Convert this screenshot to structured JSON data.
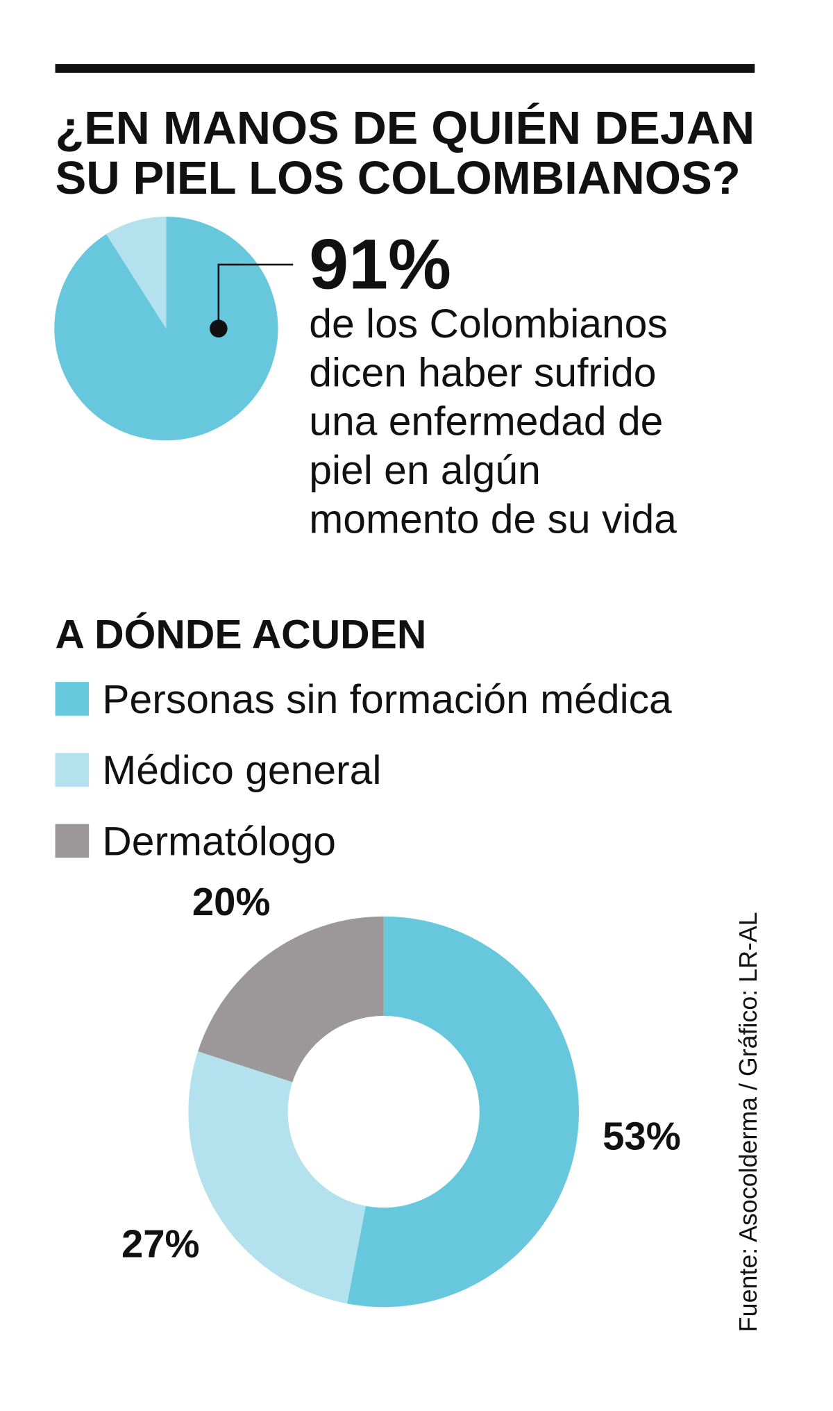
{
  "title_lines": [
    "¿EN MANOS DE QUIÉN DEJAN",
    "SU PIEL LOS COLOMBIANOS?"
  ],
  "source": "Fuente: Asocolderma / Gráfico: LR-AL",
  "chart_data": [
    {
      "type": "pie",
      "values": [
        91,
        9
      ],
      "value_labels": [
        "91%",
        null
      ],
      "colors": [
        "#67c7dd",
        "#b3e1ee"
      ],
      "text": [
        "de los Colombianos",
        "dicen haber sufrido",
        "una enfermedad de",
        "piel en algún",
        "momento de su vida"
      ]
    },
    {
      "type": "donut",
      "title": "A DÓNDE ACUDEN",
      "categories": [
        "Personas sin formación médica",
        "Médico general",
        "Dermatólogo"
      ],
      "values": [
        53,
        27,
        20
      ],
      "value_labels": [
        "53%",
        "27%",
        "20%"
      ],
      "colors": [
        "#67c7dd",
        "#b3e1ee",
        "#9c9899"
      ]
    }
  ]
}
